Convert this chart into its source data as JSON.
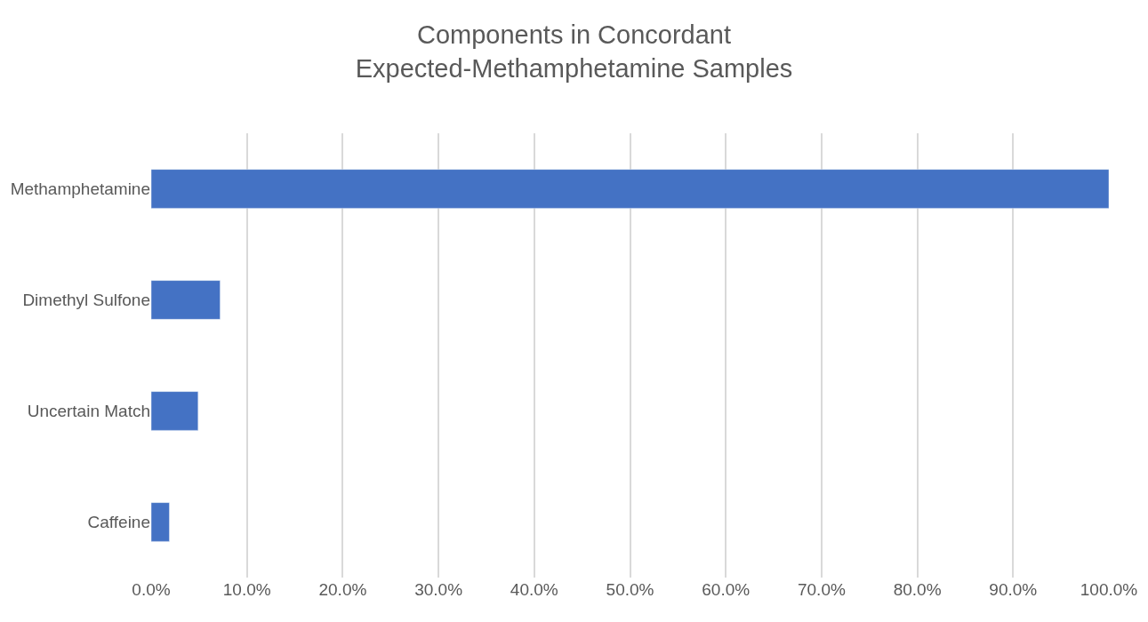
{
  "chart_data": {
    "type": "bar",
    "orientation": "horizontal",
    "title": "Components in Concordant Expected-Methamphetamine Samples",
    "categories": [
      "Methamphetamine",
      "Dimethyl Sulfone",
      "Uncertain Match",
      "Caffeine"
    ],
    "values": [
      100,
      7.2,
      4.9,
      1.9
    ],
    "color": "#4472c4",
    "xlim": [
      0,
      100
    ],
    "xticks": [
      {
        "value": 0,
        "label": "0.0%"
      },
      {
        "value": 10,
        "label": "10.0%"
      },
      {
        "value": 20,
        "label": "20.0%"
      },
      {
        "value": 30,
        "label": "30.0%"
      },
      {
        "value": 40,
        "label": "40.0%"
      },
      {
        "value": 50,
        "label": "50.0%"
      },
      {
        "value": 60,
        "label": "60.0%"
      },
      {
        "value": 70,
        "label": "70.0%"
      },
      {
        "value": 80,
        "label": "80.0%"
      },
      {
        "value": 90,
        "label": "90.0%"
      },
      {
        "value": 100,
        "label": "100.0%"
      }
    ],
    "grid": "x",
    "legend": false
  }
}
